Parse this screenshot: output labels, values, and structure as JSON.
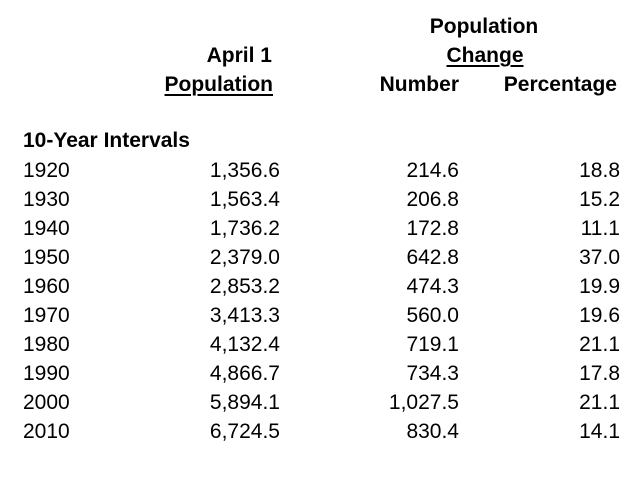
{
  "table": {
    "group_header": {
      "line1": "Population",
      "line2": "Change"
    },
    "columns": {
      "population_line1": "April 1",
      "population_line2": "Population",
      "number": "Number",
      "percentage": "Percentage"
    },
    "section_label": "10-Year Intervals",
    "rows": [
      {
        "year": "1920",
        "population": "1,356.6",
        "number": "214.6",
        "percentage": "18.8"
      },
      {
        "year": "1930",
        "population": "1,563.4",
        "number": "206.8",
        "percentage": "15.2"
      },
      {
        "year": "1940",
        "population": "1,736.2",
        "number": "172.8",
        "percentage": "11.1"
      },
      {
        "year": "1950",
        "population": "2,379.0",
        "number": "642.8",
        "percentage": "37.0"
      },
      {
        "year": "1960",
        "population": "2,853.2",
        "number": "474.3",
        "percentage": "19.9"
      },
      {
        "year": "1970",
        "population": "3,413.3",
        "number": "560.0",
        "percentage": "19.6"
      },
      {
        "year": "1980",
        "population": "4,132.4",
        "number": "719.1",
        "percentage": "21.1"
      },
      {
        "year": "1990",
        "population": "4,866.7",
        "number": "734.3",
        "percentage": "17.8"
      },
      {
        "year": "2000",
        "population": "5,894.1",
        "number": "1,027.5",
        "percentage": "21.1"
      },
      {
        "year": "2010",
        "population": "6,724.5",
        "number": "830.4",
        "percentage": "14.1"
      }
    ]
  },
  "colors": {
    "background": "#ffffff",
    "text": "#000000"
  }
}
